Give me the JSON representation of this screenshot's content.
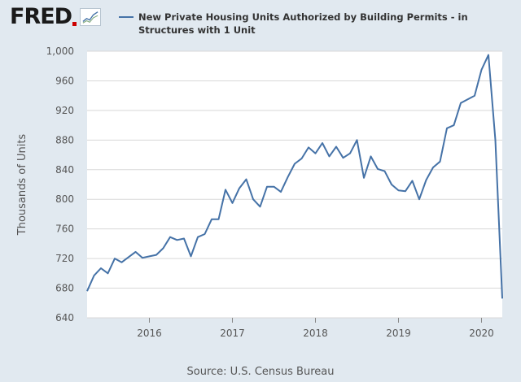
{
  "header": {
    "logo_text": "FRED",
    "legend_label": "New Private Housing Units Authorized by Building Permits - in Structures with 1 Unit"
  },
  "footer": {
    "source": "Source: U.S. Census Bureau"
  },
  "colors": {
    "series": "#4572a7",
    "background": "#e1e9f0",
    "plot_bg": "#ffffff",
    "grid": "#d8d8d8"
  },
  "chart_data": {
    "type": "line",
    "title": "",
    "xlabel": "",
    "ylabel": "Thousands of Units",
    "ylim": [
      640,
      1000
    ],
    "yticks": [
      640,
      680,
      720,
      760,
      800,
      840,
      880,
      920,
      960,
      "1,000"
    ],
    "xlim": [
      "2015-04",
      "2020-04"
    ],
    "xticks": [
      "2016",
      "2017",
      "2018",
      "2019",
      "2020"
    ],
    "grid": true,
    "legend": "top",
    "series": [
      {
        "name": "New Private Housing Units Authorized by Building Permits - in Structures with 1 Unit",
        "x": [
          "2015-04",
          "2015-05",
          "2015-06",
          "2015-07",
          "2015-08",
          "2015-09",
          "2015-10",
          "2015-11",
          "2015-12",
          "2016-01",
          "2016-02",
          "2016-03",
          "2016-04",
          "2016-05",
          "2016-06",
          "2016-07",
          "2016-08",
          "2016-09",
          "2016-10",
          "2016-11",
          "2016-12",
          "2017-01",
          "2017-02",
          "2017-03",
          "2017-04",
          "2017-05",
          "2017-06",
          "2017-07",
          "2017-08",
          "2017-09",
          "2017-10",
          "2017-11",
          "2017-12",
          "2018-01",
          "2018-02",
          "2018-03",
          "2018-04",
          "2018-05",
          "2018-06",
          "2018-07",
          "2018-08",
          "2018-09",
          "2018-10",
          "2018-11",
          "2018-12",
          "2019-01",
          "2019-02",
          "2019-03",
          "2019-04",
          "2019-05",
          "2019-06",
          "2019-07",
          "2019-08",
          "2019-09",
          "2019-10",
          "2019-11",
          "2019-12",
          "2020-01",
          "2020-02",
          "2020-03",
          "2020-04"
        ],
        "values": [
          676,
          697,
          707,
          700,
          720,
          715,
          722,
          729,
          721,
          723,
          725,
          734,
          749,
          745,
          747,
          723,
          749,
          753,
          773,
          773,
          813,
          795,
          815,
          827,
          800,
          790,
          817,
          817,
          810,
          830,
          848,
          855,
          870,
          862,
          876,
          858,
          871,
          856,
          862,
          880,
          829,
          858,
          841,
          838,
          820,
          812,
          811,
          825,
          800,
          826,
          843,
          851,
          896,
          900,
          930,
          935,
          940,
          975,
          995,
          880,
          666
        ]
      }
    ]
  }
}
